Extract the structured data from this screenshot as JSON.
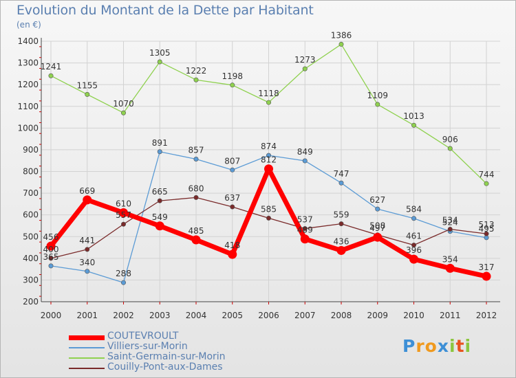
{
  "title": "Evolution du Montant de la Dette par Habitant",
  "subtitle": "(en €)",
  "logo": {
    "letters": [
      "P",
      "r",
      "o",
      "x",
      "i",
      "t",
      "i"
    ],
    "colors": [
      "#3d8fd6",
      "#f09a1f",
      "#f09a1f",
      "#3d8fd6",
      "#8cc63f",
      "#e8531f",
      "#8cc63f"
    ]
  },
  "chart_data": {
    "type": "line",
    "title": "Evolution du Montant de la Dette par Habitant",
    "subtitle": "(en €)",
    "x": [
      "2000",
      "2001",
      "2002",
      "2003",
      "2004",
      "2005",
      "2006",
      "2007",
      "2008",
      "2009",
      "2010",
      "2011",
      "2012"
    ],
    "ylim": [
      200,
      1400
    ],
    "yticks": [
      200,
      300,
      400,
      500,
      600,
      700,
      800,
      900,
      1000,
      1100,
      1200,
      1300,
      1400
    ],
    "grid": true,
    "legend_position": "bottom-left",
    "series": [
      {
        "name": "COUTEVROULT",
        "color": "#ff0000",
        "values": [
          456,
          669,
          610,
          549,
          485,
          418,
          812,
          489,
          436,
          497,
          396,
          354,
          317
        ]
      },
      {
        "name": "Villiers-sur-Morin",
        "color": "#5b9bd5",
        "values": [
          365,
          340,
          288,
          891,
          857,
          807,
          874,
          849,
          747,
          627,
          584,
          524,
          495
        ]
      },
      {
        "name": "Saint-Germain-sur-Morin",
        "color": "#8fd14f",
        "values": [
          1241,
          1155,
          1070,
          1305,
          1222,
          1198,
          1118,
          1273,
          1386,
          1109,
          1013,
          906,
          744
        ]
      },
      {
        "name": "Couilly-Pont-aux-Dames",
        "color": "#7a2a2a",
        "values": [
          400,
          441,
          557,
          665,
          680,
          637,
          585,
          537,
          559,
          508,
          461,
          534,
          513
        ]
      }
    ]
  }
}
